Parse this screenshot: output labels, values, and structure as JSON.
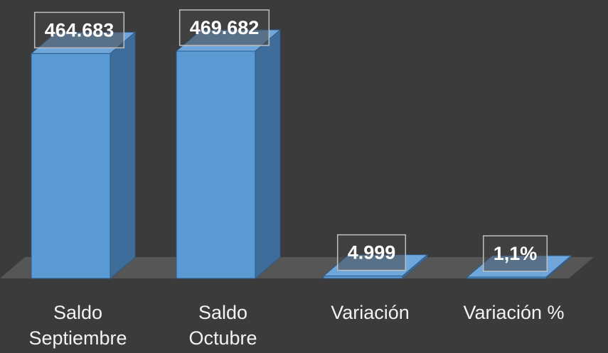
{
  "chart_data": {
    "type": "bar3d",
    "categories": [
      "Saldo Septiembre",
      "Saldo Octubre",
      "Variación",
      "Variación %"
    ],
    "values": [
      464683,
      469682,
      4999,
      1.1
    ],
    "value_labels": [
      "464.683",
      "469.682",
      "4.999",
      "1,1%"
    ],
    "color": "#5b9bd5"
  }
}
